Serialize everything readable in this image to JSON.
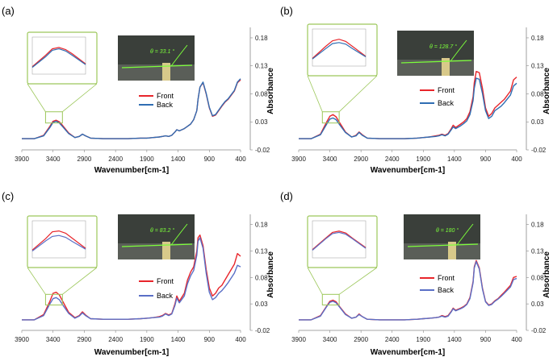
{
  "colors": {
    "front": "#e8252b",
    "back": "#2f6db3",
    "front_alt": "#e8252b",
    "back_alt": "#5a6fc6",
    "inset_border": "#9cc75a",
    "angle_green": "#7cff3a"
  },
  "chart_data": [
    {
      "type": "line",
      "panel_label": "(a)",
      "xlabel": "Wavenumber[cm-1]",
      "ylabel": "Absorbance",
      "x_ticks": [
        "3900",
        "3400",
        "2900",
        "2400",
        "1900",
        "1400",
        "900",
        "400"
      ],
      "y_ticks": [
        "0.18",
        "0.13",
        "0.08",
        "0.03",
        "-0.02"
      ],
      "xlim": [
        3900,
        400
      ],
      "ylim": [
        -0.02,
        0.19
      ],
      "series": [
        {
          "name": "Front",
          "x": [
            3900,
            3700,
            3550,
            3450,
            3400,
            3350,
            3300,
            3250,
            3150,
            3050,
            2980,
            2930,
            2880,
            2800,
            2600,
            2400,
            2200,
            2000,
            1900,
            1800,
            1700,
            1650,
            1600,
            1550,
            1500,
            1450,
            1420,
            1380,
            1300,
            1250,
            1200,
            1150,
            1100,
            1080,
            1050,
            1000,
            950,
            900,
            850,
            800,
            750,
            700,
            650,
            600,
            500,
            450,
            400
          ],
          "y": [
            0.0,
            0.0,
            0.006,
            0.022,
            0.031,
            0.033,
            0.03,
            0.024,
            0.01,
            0.002,
            0.004,
            0.008,
            0.005,
            0.001,
            0.0,
            0.0,
            0.0,
            0.001,
            0.001,
            0.002,
            0.003,
            0.004,
            0.005,
            0.004,
            0.006,
            0.012,
            0.016,
            0.014,
            0.018,
            0.022,
            0.026,
            0.034,
            0.05,
            0.07,
            0.092,
            0.1,
            0.08,
            0.055,
            0.04,
            0.042,
            0.05,
            0.058,
            0.065,
            0.07,
            0.085,
            0.1,
            0.105
          ]
        },
        {
          "name": "Back",
          "x": [
            3900,
            3700,
            3550,
            3450,
            3400,
            3350,
            3300,
            3250,
            3150,
            3050,
            2980,
            2930,
            2880,
            2800,
            2600,
            2400,
            2200,
            2000,
            1900,
            1800,
            1700,
            1650,
            1600,
            1550,
            1500,
            1450,
            1420,
            1380,
            1300,
            1250,
            1200,
            1150,
            1100,
            1080,
            1050,
            1000,
            950,
            900,
            850,
            800,
            750,
            700,
            650,
            600,
            500,
            450,
            400
          ],
          "y": [
            0.0,
            0.0,
            0.005,
            0.02,
            0.029,
            0.031,
            0.028,
            0.022,
            0.009,
            0.002,
            0.004,
            0.008,
            0.005,
            0.001,
            0.0,
            0.0,
            0.0,
            0.001,
            0.001,
            0.002,
            0.003,
            0.004,
            0.005,
            0.004,
            0.006,
            0.012,
            0.016,
            0.014,
            0.018,
            0.022,
            0.026,
            0.034,
            0.05,
            0.07,
            0.092,
            0.101,
            0.081,
            0.056,
            0.041,
            0.043,
            0.051,
            0.059,
            0.066,
            0.071,
            0.086,
            0.101,
            0.107
          ]
        }
      ],
      "inset": {
        "contact_angle": "θ = 33.1 °"
      }
    },
    {
      "type": "line",
      "panel_label": "(b)",
      "xlabel": "Wavenumber[cm-1]",
      "ylabel": "Absorbance",
      "x_ticks": [
        "3900",
        "3400",
        "2900",
        "2400",
        "1900",
        "1400",
        "900",
        "400"
      ],
      "y_ticks": [
        "0.18",
        "0.13",
        "0.08",
        "0.03",
        "-0.02"
      ],
      "xlim": [
        3900,
        400
      ],
      "ylim": [
        -0.02,
        0.19
      ],
      "series": [
        {
          "name": "Front",
          "x": [
            3900,
            3700,
            3550,
            3450,
            3400,
            3350,
            3300,
            3250,
            3150,
            3050,
            2980,
            2930,
            2880,
            2800,
            2600,
            2400,
            2200,
            2000,
            1900,
            1800,
            1700,
            1650,
            1600,
            1550,
            1500,
            1450,
            1420,
            1380,
            1300,
            1250,
            1200,
            1150,
            1100,
            1080,
            1050,
            1000,
            950,
            900,
            850,
            800,
            750,
            700,
            650,
            600,
            500,
            450,
            400
          ],
          "y": [
            0.0,
            0.0,
            0.008,
            0.03,
            0.04,
            0.043,
            0.039,
            0.03,
            0.012,
            0.003,
            0.006,
            0.012,
            0.007,
            0.001,
            0.0,
            0.0,
            0.0,
            0.001,
            0.002,
            0.003,
            0.005,
            0.006,
            0.008,
            0.006,
            0.009,
            0.018,
            0.024,
            0.02,
            0.026,
            0.03,
            0.036,
            0.048,
            0.075,
            0.1,
            0.12,
            0.118,
            0.09,
            0.055,
            0.04,
            0.045,
            0.055,
            0.06,
            0.065,
            0.07,
            0.085,
            0.105,
            0.11
          ]
        },
        {
          "name": "Back",
          "x": [
            3900,
            3700,
            3550,
            3450,
            3400,
            3350,
            3300,
            3250,
            3150,
            3050,
            2980,
            2930,
            2880,
            2800,
            2600,
            2400,
            2200,
            2000,
            1900,
            1800,
            1700,
            1650,
            1600,
            1550,
            1500,
            1450,
            1420,
            1380,
            1300,
            1250,
            1200,
            1150,
            1100,
            1080,
            1050,
            1000,
            950,
            900,
            850,
            800,
            750,
            700,
            650,
            600,
            500,
            450,
            400
          ],
          "y": [
            0.0,
            0.0,
            0.007,
            0.026,
            0.035,
            0.037,
            0.034,
            0.026,
            0.011,
            0.003,
            0.005,
            0.011,
            0.006,
            0.001,
            0.0,
            0.0,
            0.0,
            0.001,
            0.002,
            0.003,
            0.004,
            0.005,
            0.007,
            0.005,
            0.008,
            0.016,
            0.021,
            0.018,
            0.023,
            0.027,
            0.032,
            0.043,
            0.068,
            0.09,
            0.108,
            0.106,
            0.081,
            0.05,
            0.036,
            0.04,
            0.05,
            0.054,
            0.058,
            0.064,
            0.078,
            0.094,
            0.099
          ]
        }
      ],
      "inset": {
        "contact_angle": "θ = 128.7 °"
      }
    },
    {
      "type": "line",
      "panel_label": "(c)",
      "xlabel": "Wavenumber[cm-1]",
      "ylabel": "Absorbance",
      "x_ticks": [
        "3900",
        "3400",
        "2900",
        "2400",
        "1900",
        "1400",
        "900",
        "400"
      ],
      "y_ticks": [
        "0.18",
        "0.13",
        "0.08",
        "0.03",
        "-0.02"
      ],
      "xlim": [
        3900,
        400
      ],
      "ylim": [
        -0.02,
        0.19
      ],
      "series": [
        {
          "name": "Front",
          "x": [
            3900,
            3700,
            3550,
            3450,
            3400,
            3350,
            3300,
            3250,
            3150,
            3050,
            2980,
            2930,
            2880,
            2800,
            2600,
            2400,
            2200,
            2000,
            1900,
            1800,
            1700,
            1650,
            1600,
            1550,
            1500,
            1450,
            1420,
            1380,
            1300,
            1250,
            1200,
            1150,
            1100,
            1080,
            1050,
            1000,
            950,
            900,
            850,
            800,
            750,
            700,
            650,
            600,
            500,
            450,
            400
          ],
          "y": [
            0.0,
            0.0,
            0.01,
            0.035,
            0.05,
            0.052,
            0.047,
            0.036,
            0.014,
            0.004,
            0.008,
            0.015,
            0.009,
            0.002,
            0.001,
            0.001,
            0.001,
            0.002,
            0.003,
            0.004,
            0.006,
            0.008,
            0.012,
            0.009,
            0.012,
            0.03,
            0.045,
            0.035,
            0.05,
            0.075,
            0.09,
            0.1,
            0.13,
            0.155,
            0.16,
            0.14,
            0.095,
            0.06,
            0.045,
            0.05,
            0.06,
            0.065,
            0.075,
            0.085,
            0.105,
            0.125,
            0.12
          ]
        },
        {
          "name": "Back",
          "x": [
            3900,
            3700,
            3550,
            3450,
            3400,
            3350,
            3300,
            3250,
            3150,
            3050,
            2980,
            2930,
            2880,
            2800,
            2600,
            2400,
            2200,
            2000,
            1900,
            1800,
            1700,
            1650,
            1600,
            1550,
            1500,
            1450,
            1420,
            1380,
            1300,
            1250,
            1200,
            1150,
            1100,
            1080,
            1050,
            1000,
            950,
            900,
            850,
            800,
            750,
            700,
            650,
            600,
            500,
            450,
            400
          ],
          "y": [
            0.0,
            0.0,
            0.008,
            0.03,
            0.04,
            0.042,
            0.038,
            0.029,
            0.012,
            0.003,
            0.007,
            0.013,
            0.008,
            0.002,
            0.001,
            0.001,
            0.001,
            0.002,
            0.003,
            0.004,
            0.005,
            0.007,
            0.011,
            0.008,
            0.011,
            0.027,
            0.041,
            0.032,
            0.045,
            0.068,
            0.083,
            0.093,
            0.122,
            0.148,
            0.155,
            0.135,
            0.088,
            0.052,
            0.038,
            0.042,
            0.05,
            0.055,
            0.062,
            0.07,
            0.088,
            0.103,
            0.1
          ]
        }
      ],
      "inset": {
        "contact_angle": "θ = 83.2 °"
      }
    },
    {
      "type": "line",
      "panel_label": "(d)",
      "xlabel": "Wavenumber[cm-1]",
      "ylabel": "Absorbance",
      "x_ticks": [
        "3900",
        "3400",
        "2900",
        "2400",
        "1900",
        "1400",
        "900",
        "400"
      ],
      "y_ticks": [
        "0.18",
        "0.13",
        "0.08",
        "0.03",
        "-0.02"
      ],
      "xlim": [
        3900,
        400
      ],
      "ylim": [
        -0.02,
        0.19
      ],
      "series": [
        {
          "name": "Front",
          "x": [
            3900,
            3700,
            3550,
            3450,
            3400,
            3350,
            3300,
            3250,
            3150,
            3050,
            2980,
            2930,
            2880,
            2800,
            2600,
            2400,
            2200,
            2000,
            1900,
            1800,
            1700,
            1650,
            1600,
            1550,
            1500,
            1450,
            1420,
            1380,
            1300,
            1250,
            1200,
            1150,
            1100,
            1080,
            1050,
            1000,
            950,
            900,
            850,
            800,
            750,
            700,
            650,
            600,
            500,
            450,
            400
          ],
          "y": [
            0.0,
            0.0,
            0.008,
            0.026,
            0.035,
            0.037,
            0.034,
            0.026,
            0.011,
            0.003,
            0.005,
            0.011,
            0.006,
            0.001,
            0.0,
            0.0,
            0.0,
            0.001,
            0.002,
            0.003,
            0.004,
            0.005,
            0.008,
            0.006,
            0.008,
            0.016,
            0.022,
            0.018,
            0.022,
            0.025,
            0.03,
            0.042,
            0.072,
            0.1,
            0.112,
            0.098,
            0.06,
            0.035,
            0.028,
            0.03,
            0.036,
            0.04,
            0.046,
            0.052,
            0.065,
            0.08,
            0.082
          ]
        },
        {
          "name": "Back",
          "x": [
            3900,
            3700,
            3550,
            3450,
            3400,
            3350,
            3300,
            3250,
            3150,
            3050,
            2980,
            2930,
            2880,
            2800,
            2600,
            2400,
            2200,
            2000,
            1900,
            1800,
            1700,
            1650,
            1600,
            1550,
            1500,
            1450,
            1420,
            1380,
            1300,
            1250,
            1200,
            1150,
            1100,
            1080,
            1050,
            1000,
            950,
            900,
            850,
            800,
            750,
            700,
            650,
            600,
            500,
            450,
            400
          ],
          "y": [
            0.0,
            0.0,
            0.007,
            0.025,
            0.033,
            0.035,
            0.032,
            0.025,
            0.01,
            0.003,
            0.005,
            0.01,
            0.006,
            0.001,
            0.0,
            0.0,
            0.0,
            0.001,
            0.002,
            0.003,
            0.004,
            0.005,
            0.007,
            0.005,
            0.007,
            0.015,
            0.021,
            0.017,
            0.021,
            0.024,
            0.029,
            0.04,
            0.07,
            0.098,
            0.11,
            0.096,
            0.058,
            0.034,
            0.027,
            0.029,
            0.035,
            0.039,
            0.044,
            0.05,
            0.062,
            0.076,
            0.078
          ]
        }
      ],
      "inset": {
        "contact_angle": "θ = 180 °"
      }
    }
  ]
}
